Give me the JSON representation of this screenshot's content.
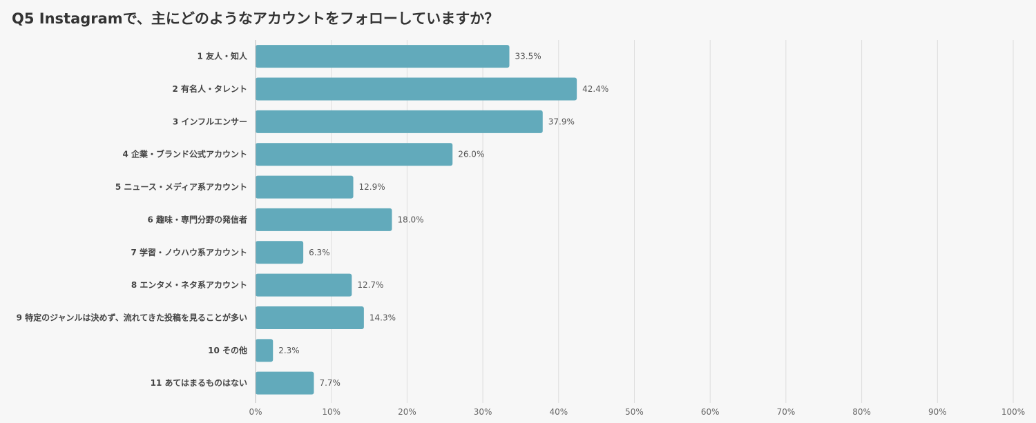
{
  "chart_data": {
    "type": "bar",
    "orientation": "horizontal",
    "title": "Q5 Instagramで、主にどのようなアカウントをフォローしていますか？",
    "categories": [
      "1 友人・知人",
      "2 有名人・タレント",
      "3 インフルエンサー",
      "4 企業・ブランド公式アカウント",
      "5 ニュース・メディア系アカウント",
      "6 趣味・専門分野の発信者",
      "7 学習・ノウハウ系アカウント",
      "8 エンタメ・ネタ系アカウント",
      "9 特定のジャンルは決めず、流れてきた投稿を見ることが多い",
      "10 その他",
      "11 あてはまるものはない"
    ],
    "values": [
      33.5,
      42.4,
      37.9,
      26.0,
      12.9,
      18.0,
      6.3,
      12.7,
      14.3,
      2.3,
      7.7
    ],
    "value_labels": [
      "33.5%",
      "42.4%",
      "37.9%",
      "26.0%",
      "12.9%",
      "18.0%",
      "6.3%",
      "12.7%",
      "14.3%",
      "2.3%",
      "7.7%"
    ],
    "xlim": [
      0,
      100
    ],
    "x_ticks": [
      "0%",
      "10%",
      "20%",
      "30%",
      "40%",
      "50%",
      "60%",
      "70%",
      "80%",
      "90%",
      "100%"
    ],
    "grid": true,
    "bar_color": "#62aabb",
    "grid_color": "#dddddd"
  }
}
